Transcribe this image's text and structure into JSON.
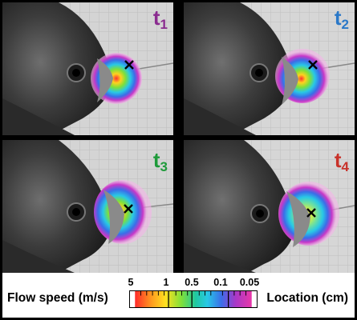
{
  "panels": [
    {
      "label": "t",
      "sub": "1",
      "color": "#8a2b8f"
    },
    {
      "label": "t",
      "sub": "2",
      "color": "#2a78c8"
    },
    {
      "label": "t",
      "sub": "3",
      "color": "#1e9a3a"
    },
    {
      "label": "t",
      "sub": "4",
      "color": "#c8322a"
    }
  ],
  "legend": {
    "left_label": "Flow speed (m/s)",
    "right_label": "Location (cm)",
    "ticks": [
      "5",
      "1",
      "0.5",
      "0.1",
      "0.05"
    ]
  },
  "marker_symbol": "×"
}
